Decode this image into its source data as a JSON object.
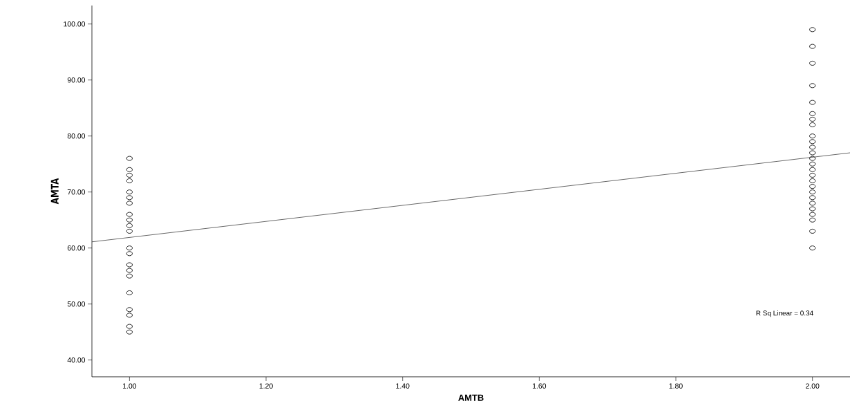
{
  "chart_data": {
    "type": "scatter",
    "xlabel": "AMTB",
    "ylabel": "AMTA",
    "marker": "circle",
    "xlim": [
      0.945,
      2.055
    ],
    "ylim": [
      37,
      103.3
    ],
    "xticks": [
      {
        "value": 1,
        "label": "1.00"
      },
      {
        "value": 1.2,
        "label": "1.20"
      },
      {
        "value": 1.4,
        "label": "1.40"
      },
      {
        "value": 1.6,
        "label": "1.60"
      },
      {
        "value": 1.8,
        "label": "1.80"
      },
      {
        "value": 2,
        "label": "2.00"
      }
    ],
    "yticks": [
      {
        "value": 40,
        "label": "40.00"
      },
      {
        "value": 50,
        "label": "50.00"
      },
      {
        "value": 60,
        "label": "60.00"
      },
      {
        "value": 70,
        "label": "70.00"
      },
      {
        "value": 80,
        "label": "80.00"
      },
      {
        "value": 90,
        "label": "90.00"
      },
      {
        "value": 100,
        "label": "100.00"
      }
    ],
    "annotations": [
      "R Sq Linear = 0.34"
    ],
    "series": [
      {
        "color": "#000000",
        "x": [
          1,
          1,
          1,
          1,
          1,
          1,
          1,
          1,
          1,
          1,
          1,
          1,
          1,
          1,
          1,
          1,
          1,
          1,
          1,
          1,
          1
        ],
        "values": [
          76,
          74,
          73,
          72,
          70,
          69,
          68,
          66,
          65,
          64,
          63,
          60,
          59,
          57,
          56,
          55,
          52,
          49,
          48,
          46,
          45
        ]
      },
      {
        "color": "#000000",
        "x": [
          2,
          2,
          2,
          2,
          2,
          2,
          2,
          2,
          2,
          2,
          2,
          2,
          2,
          2,
          2,
          2,
          2,
          2,
          2,
          2,
          2,
          2,
          2,
          2,
          2,
          2
        ],
        "values": [
          99,
          96,
          93,
          89,
          86,
          84,
          83,
          82,
          80,
          79,
          78,
          77,
          76,
          75,
          74,
          73,
          72,
          71,
          70,
          69,
          68,
          67,
          66,
          65,
          63,
          60
        ]
      },
      {
        "type": "line",
        "marker": "none",
        "color": "#000000",
        "x": [
          0.945,
          2.055
        ],
        "values": [
          61.1,
          77.0
        ]
      }
    ]
  }
}
